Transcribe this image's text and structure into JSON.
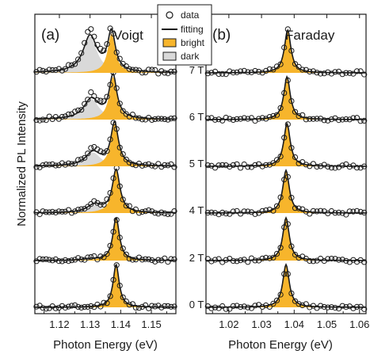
{
  "chart_data": [
    {
      "type": "line",
      "panel_label": "(a)",
      "geometry_label": "Voigt",
      "xlabel": "Photon Energy (eV)",
      "ylabel": "Normalized PL Intensity",
      "xlim": [
        1.112,
        1.158
      ],
      "xticks": [
        "1.12",
        "1.13",
        "1.14",
        "1.15"
      ],
      "xtick_values": [
        1.12,
        1.13,
        1.14,
        1.15
      ],
      "stack_order": [
        "0 T",
        "2 T",
        "4 T",
        "5 T",
        "6 T",
        "7 T"
      ],
      "spectra": [
        {
          "field": "0 T",
          "bright_center": 1.1385,
          "bright_amp": 1.0,
          "bright_fwhm": 0.0024,
          "dark_center": 1.13,
          "dark_amp": 0.0,
          "dark_fwhm": 0.006
        },
        {
          "field": "2 T",
          "bright_center": 1.1385,
          "bright_amp": 1.0,
          "bright_fwhm": 0.0026,
          "dark_center": 1.13,
          "dark_amp": 0.04,
          "dark_fwhm": 0.006
        },
        {
          "field": "4 T",
          "bright_center": 1.1385,
          "bright_amp": 1.0,
          "bright_fwhm": 0.003,
          "dark_center": 1.1315,
          "dark_amp": 0.22,
          "dark_fwhm": 0.006
        },
        {
          "field": "5 T",
          "bright_center": 1.138,
          "bright_amp": 1.0,
          "bright_fwhm": 0.003,
          "dark_center": 1.131,
          "dark_amp": 0.38,
          "dark_fwhm": 0.006
        },
        {
          "field": "6 T",
          "bright_center": 1.1375,
          "bright_amp": 1.0,
          "bright_fwhm": 0.003,
          "dark_center": 1.1305,
          "dark_amp": 0.56,
          "dark_fwhm": 0.006
        },
        {
          "field": "7 T",
          "bright_center": 1.137,
          "bright_amp": 0.92,
          "bright_fwhm": 0.003,
          "dark_center": 1.13,
          "dark_amp": 1.0,
          "dark_fwhm": 0.0055
        }
      ]
    },
    {
      "type": "line",
      "panel_label": "(b)",
      "geometry_label": "Faraday",
      "xlabel": "Photon Energy (eV)",
      "xlim": [
        1.013,
        1.062
      ],
      "xticks": [
        "1.02",
        "1.03",
        "1.04",
        "1.05",
        "1.06"
      ],
      "xtick_values": [
        1.02,
        1.03,
        1.04,
        1.05,
        1.06
      ],
      "field_labels": [
        "0 T",
        "2 T",
        "4 T",
        "5 T",
        "6 T",
        "7 T"
      ],
      "spectra": [
        {
          "field": "0 T",
          "bright_center": 1.0375,
          "bright_amp": 1.0,
          "bright_fwhm": 0.0024
        },
        {
          "field": "2 T",
          "bright_center": 1.0375,
          "bright_amp": 1.0,
          "bright_fwhm": 0.0024
        },
        {
          "field": "4 T",
          "bright_center": 1.0375,
          "bright_amp": 1.0,
          "bright_fwhm": 0.0024
        },
        {
          "field": "5 T",
          "bright_center": 1.0378,
          "bright_amp": 1.0,
          "bright_fwhm": 0.0024
        },
        {
          "field": "6 T",
          "bright_center": 1.0378,
          "bright_amp": 1.0,
          "bright_fwhm": 0.0024
        },
        {
          "field": "7 T",
          "bright_center": 1.038,
          "bright_amp": 1.0,
          "bright_fwhm": 0.0024
        }
      ]
    }
  ],
  "legend": {
    "items": [
      {
        "label": "data",
        "style": "open-circle"
      },
      {
        "label": "fitting",
        "style": "line"
      },
      {
        "label": "bright",
        "style": "fill-bright"
      },
      {
        "label": "dark",
        "style": "fill-dark"
      }
    ]
  },
  "colors": {
    "bright": "#f7b52c",
    "dark": "#d9d9d9",
    "line": "#1a1a1a"
  }
}
